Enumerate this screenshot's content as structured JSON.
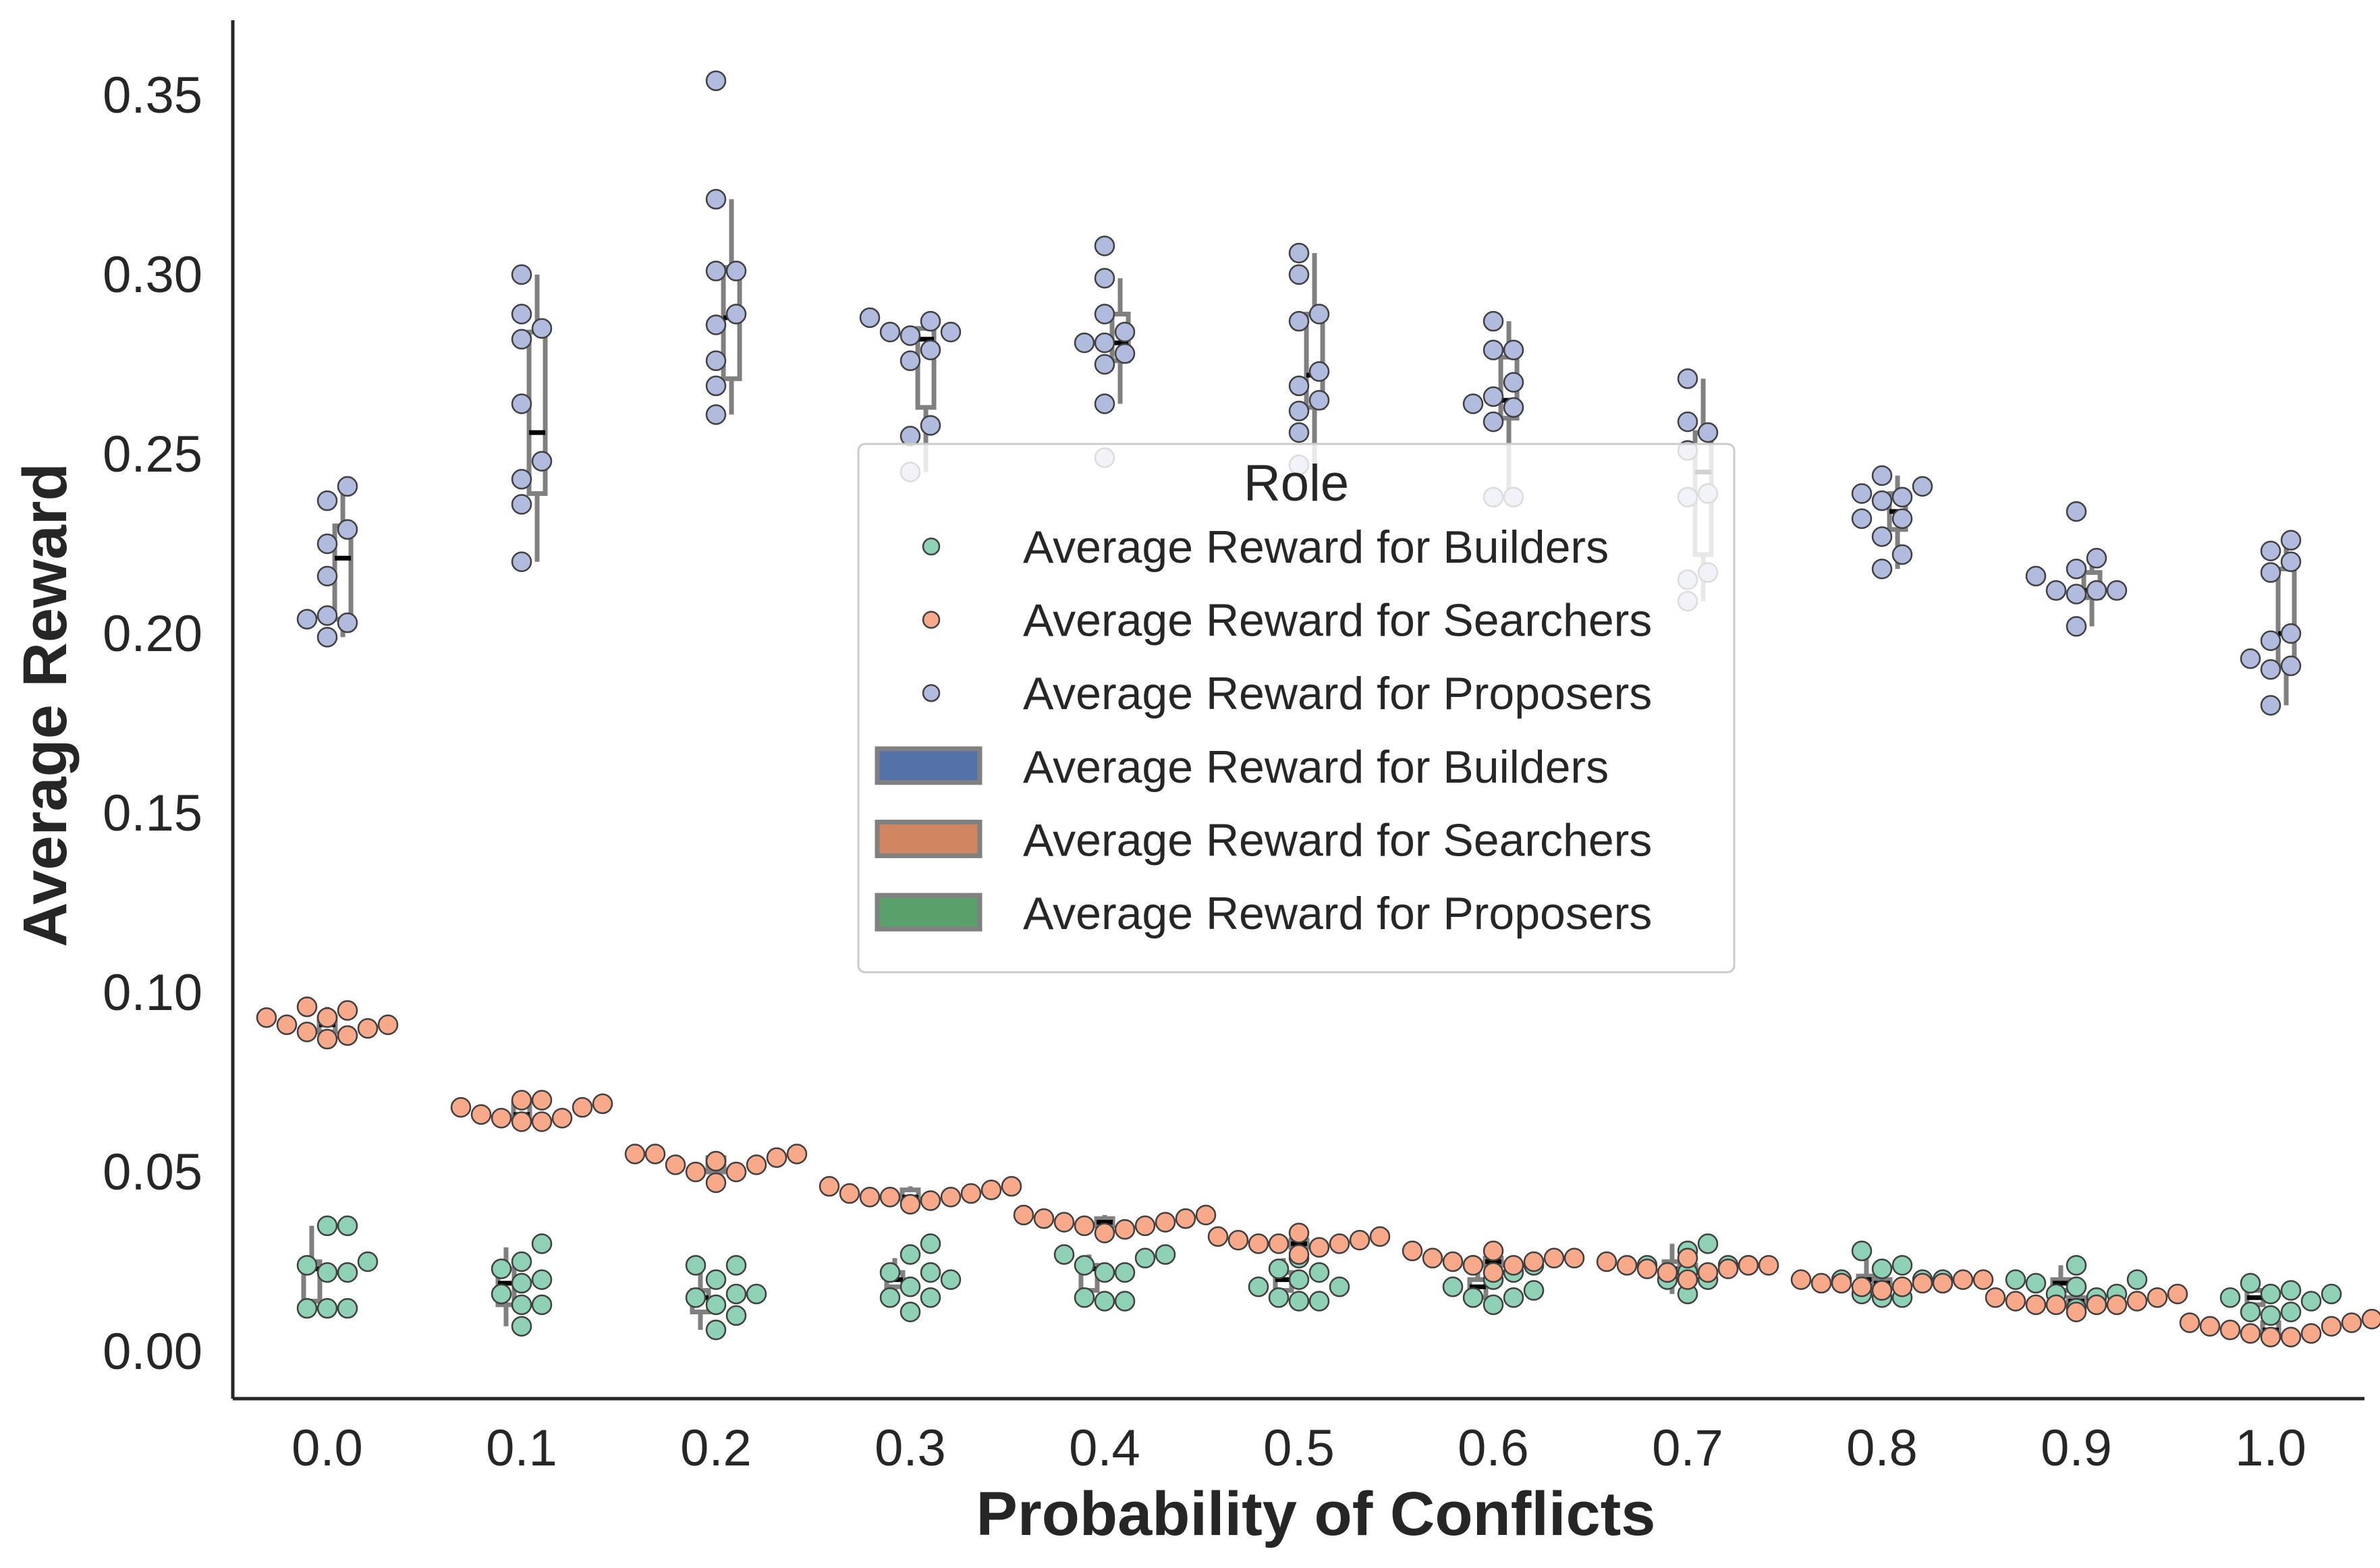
{
  "chart_data": {
    "type": "scatter",
    "subtype": "box + swarm (strip) plot by group",
    "title": "",
    "xlabel": "Probability of Conflicts",
    "ylabel": "Average Reward",
    "categories": [
      "0.0",
      "0.1",
      "0.2",
      "0.3",
      "0.4",
      "0.5",
      "0.6",
      "0.7",
      "0.8",
      "0.9",
      "1.0"
    ],
    "yticks": [
      "0.00",
      "0.05",
      "0.10",
      "0.15",
      "0.20",
      "0.25",
      "0.30",
      "0.35"
    ],
    "ylim": [
      -0.013,
      0.37
    ],
    "grid": false,
    "legend": {
      "title": "Role",
      "placement": "center",
      "entries": [
        {
          "kind": "point",
          "label": "Average Reward for Builders",
          "color": "#8fd1b4"
        },
        {
          "kind": "point",
          "label": "Average Reward for Searchers",
          "color": "#f8a98a"
        },
        {
          "kind": "point",
          "label": "Average Reward for Proposers",
          "color": "#b1bbdd"
        },
        {
          "kind": "patch",
          "label": "Average Reward for Builders",
          "color": "#5572a8"
        },
        {
          "kind": "patch",
          "label": "Average Reward for Searchers",
          "color": "#d08661"
        },
        {
          "kind": "patch",
          "label": "Average Reward for Proposers",
          "color": "#5aa06b"
        }
      ]
    },
    "series": [
      {
        "role": "builders",
        "point_color": "#8fd1b4",
        "box_offset": -0.08,
        "points": [
          [
            0.024,
            0.035,
            0.035,
            0.022,
            0.022,
            0.012,
            0.012,
            0.012,
            0.025
          ],
          [
            0.02,
            0.03,
            0.019,
            0.025,
            0.013,
            0.013,
            0.016,
            0.007,
            0.023
          ],
          [
            0.024,
            0.024,
            0.01,
            0.016,
            0.016,
            0.013,
            0.006,
            0.02,
            0.015
          ],
          [
            0.022,
            0.03,
            0.027,
            0.018,
            0.022,
            0.015,
            0.015,
            0.011,
            0.02
          ],
          [
            0.027,
            0.026,
            0.027,
            0.022,
            0.022,
            0.014,
            0.014,
            0.015,
            0.024
          ],
          [
            0.023,
            0.026,
            0.018,
            0.014,
            0.014,
            0.022,
            0.018,
            0.015,
            0.02
          ],
          [
            0.024,
            0.024,
            0.015,
            0.022,
            0.013,
            0.017,
            0.015,
            0.018,
            0.02
          ],
          [
            0.024,
            0.024,
            0.03,
            0.02,
            0.016,
            0.022,
            0.028,
            0.02,
            0.024
          ],
          [
            0.023,
            0.02,
            0.024,
            0.028,
            0.015,
            0.015,
            0.016,
            0.02,
            0.02
          ],
          [
            0.02,
            0.019,
            0.018,
            0.016,
            0.015,
            0.012,
            0.024,
            0.016,
            0.02
          ],
          [
            0.015,
            0.019,
            0.011,
            0.011,
            0.01,
            0.017,
            0.016,
            0.016,
            0.014
          ]
        ],
        "box": [
          {
            "q1": 0.014,
            "median": 0.023,
            "q3": 0.025,
            "lo": 0.012,
            "hi": 0.035
          },
          {
            "q1": 0.013,
            "median": 0.019,
            "q3": 0.023,
            "lo": 0.007,
            "hi": 0.029
          },
          {
            "q1": 0.011,
            "median": 0.015,
            "q3": 0.017,
            "lo": 0.006,
            "hi": 0.024
          },
          {
            "q1": 0.018,
            "median": 0.02,
            "q3": 0.022,
            "lo": 0.015,
            "hi": 0.026
          },
          {
            "q1": 0.017,
            "median": 0.023,
            "q3": 0.024,
            "lo": 0.014,
            "hi": 0.027
          },
          {
            "q1": 0.017,
            "median": 0.02,
            "q3": 0.022,
            "lo": 0.014,
            "hi": 0.026
          },
          {
            "q1": 0.015,
            "median": 0.018,
            "q3": 0.02,
            "lo": 0.013,
            "hi": 0.024
          },
          {
            "q1": 0.021,
            "median": 0.023,
            "q3": 0.025,
            "lo": 0.016,
            "hi": 0.03
          },
          {
            "q1": 0.017,
            "median": 0.02,
            "q3": 0.021,
            "lo": 0.015,
            "hi": 0.027
          },
          {
            "q1": 0.017,
            "median": 0.019,
            "q3": 0.02,
            "lo": 0.012,
            "hi": 0.024
          },
          {
            "q1": 0.013,
            "median": 0.015,
            "q3": 0.017,
            "lo": 0.01,
            "hi": 0.019
          }
        ]
      },
      {
        "role": "searchers",
        "point_color": "#f8a98a",
        "box_offset": 0.0,
        "points": [
          [
            0.093,
            0.091,
            0.089,
            0.095,
            0.093,
            0.087,
            0.096,
            0.088,
            0.09,
            0.091
          ],
          [
            0.066,
            0.07,
            0.068,
            0.064,
            0.069,
            0.065,
            0.07,
            0.064,
            0.065,
            0.068
          ],
          [
            0.053,
            0.052,
            0.05,
            0.055,
            0.047,
            0.05,
            0.055,
            0.052,
            0.054,
            0.055
          ],
          [
            0.046,
            0.045,
            0.044,
            0.043,
            0.042,
            0.043,
            0.041,
            0.043,
            0.044,
            0.046
          ],
          [
            0.036,
            0.035,
            0.033,
            0.038,
            0.034,
            0.038,
            0.036,
            0.035,
            0.037,
            0.037
          ],
          [
            0.032,
            0.031,
            0.03,
            0.027,
            0.029,
            0.033,
            0.03,
            0.03,
            0.031,
            0.032
          ],
          [
            0.026,
            0.025,
            0.024,
            0.022,
            0.025,
            0.028,
            0.024,
            0.026,
            0.026,
            0.028
          ],
          [
            0.024,
            0.023,
            0.022,
            0.025,
            0.02,
            0.026,
            0.022,
            0.023,
            0.024,
            0.024
          ],
          [
            0.02,
            0.019,
            0.018,
            0.02,
            0.017,
            0.019,
            0.018,
            0.019,
            0.019,
            0.02
          ],
          [
            0.016,
            0.015,
            0.014,
            0.013,
            0.011,
            0.013,
            0.013,
            0.013,
            0.014,
            0.015
          ],
          [
            0.009,
            0.008,
            0.007,
            0.005,
            0.004,
            0.004,
            0.006,
            0.005,
            0.007,
            0.008
          ]
        ],
        "box": [
          {
            "q1": 0.089,
            "median": 0.091,
            "q3": 0.093,
            "lo": 0.087,
            "hi": 0.096
          },
          {
            "q1": 0.065,
            "median": 0.066,
            "q3": 0.069,
            "lo": 0.064,
            "hi": 0.07
          },
          {
            "q1": 0.05,
            "median": 0.052,
            "q3": 0.054,
            "lo": 0.047,
            "hi": 0.055
          },
          {
            "q1": 0.042,
            "median": 0.043,
            "q3": 0.045,
            "lo": 0.041,
            "hi": 0.046
          },
          {
            "q1": 0.035,
            "median": 0.036,
            "q3": 0.037,
            "lo": 0.033,
            "hi": 0.038
          },
          {
            "q1": 0.029,
            "median": 0.03,
            "q3": 0.031,
            "lo": 0.027,
            "hi": 0.033
          },
          {
            "q1": 0.024,
            "median": 0.025,
            "q3": 0.026,
            "lo": 0.022,
            "hi": 0.028
          },
          {
            "q1": 0.022,
            "median": 0.023,
            "q3": 0.024,
            "lo": 0.02,
            "hi": 0.026
          },
          {
            "q1": 0.018,
            "median": 0.019,
            "q3": 0.02,
            "lo": 0.017,
            "hi": 0.02
          },
          {
            "q1": 0.013,
            "median": 0.014,
            "q3": 0.015,
            "lo": 0.011,
            "hi": 0.016
          },
          {
            "q1": 0.005,
            "median": 0.006,
            "q3": 0.008,
            "lo": 0.004,
            "hi": 0.009
          }
        ]
      },
      {
        "role": "proposers",
        "point_color": "#b1bbdd",
        "box_offset": 0.08,
        "points": [
          [
            0.241,
            0.237,
            0.229,
            0.225,
            0.216,
            0.205,
            0.204,
            0.203,
            0.199
          ],
          [
            0.3,
            0.289,
            0.285,
            0.282,
            0.264,
            0.248,
            0.243,
            0.236,
            0.22
          ],
          [
            0.354,
            0.321,
            0.301,
            0.301,
            0.289,
            0.286,
            0.276,
            0.269,
            0.261
          ],
          [
            0.288,
            0.287,
            0.284,
            0.284,
            0.283,
            0.279,
            0.276,
            0.258,
            0.255,
            0.245
          ],
          [
            0.308,
            0.299,
            0.289,
            0.284,
            0.281,
            0.281,
            0.278,
            0.275,
            0.264,
            0.249
          ],
          [
            0.306,
            0.3,
            0.289,
            0.287,
            0.273,
            0.269,
            0.265,
            0.262,
            0.256,
            0.247
          ],
          [
            0.287,
            0.279,
            0.279,
            0.27,
            0.266,
            0.264,
            0.263,
            0.259,
            0.238,
            0.238
          ],
          [
            0.271,
            0.259,
            0.256,
            0.251,
            0.239,
            0.238,
            0.217,
            0.215,
            0.209
          ],
          [
            0.244,
            0.241,
            0.239,
            0.238,
            0.237,
            0.232,
            0.232,
            0.227,
            0.222,
            0.218
          ],
          [
            0.234,
            0.221,
            0.218,
            0.216,
            0.212,
            0.212,
            0.212,
            0.211,
            0.202
          ],
          [
            0.226,
            0.223,
            0.22,
            0.217,
            0.2,
            0.198,
            0.193,
            0.191,
            0.19,
            0.18
          ]
        ],
        "box": [
          {
            "q1": 0.204,
            "median": 0.221,
            "q3": 0.23,
            "lo": 0.199,
            "hi": 0.241
          },
          {
            "q1": 0.239,
            "median": 0.256,
            "q3": 0.284,
            "lo": 0.22,
            "hi": 0.3
          },
          {
            "q1": 0.271,
            "median": 0.288,
            "q3": 0.302,
            "lo": 0.261,
            "hi": 0.321
          },
          {
            "q1": 0.263,
            "median": 0.282,
            "q3": 0.285,
            "lo": 0.245,
            "hi": 0.288
          },
          {
            "q1": 0.276,
            "median": 0.281,
            "q3": 0.289,
            "lo": 0.264,
            "hi": 0.299
          },
          {
            "q1": 0.263,
            "median": 0.272,
            "q3": 0.289,
            "lo": 0.247,
            "hi": 0.306
          },
          {
            "q1": 0.26,
            "median": 0.265,
            "q3": 0.277,
            "lo": 0.238,
            "hi": 0.287
          },
          {
            "q1": 0.222,
            "median": 0.245,
            "q3": 0.256,
            "lo": 0.209,
            "hi": 0.271
          },
          {
            "q1": 0.229,
            "median": 0.234,
            "q3": 0.239,
            "lo": 0.218,
            "hi": 0.244
          },
          {
            "q1": 0.21,
            "median": 0.212,
            "q3": 0.217,
            "lo": 0.202,
            "hi": 0.221
          },
          {
            "q1": 0.191,
            "median": 0.2,
            "q3": 0.218,
            "lo": 0.18,
            "hi": 0.226
          }
        ]
      }
    ]
  }
}
